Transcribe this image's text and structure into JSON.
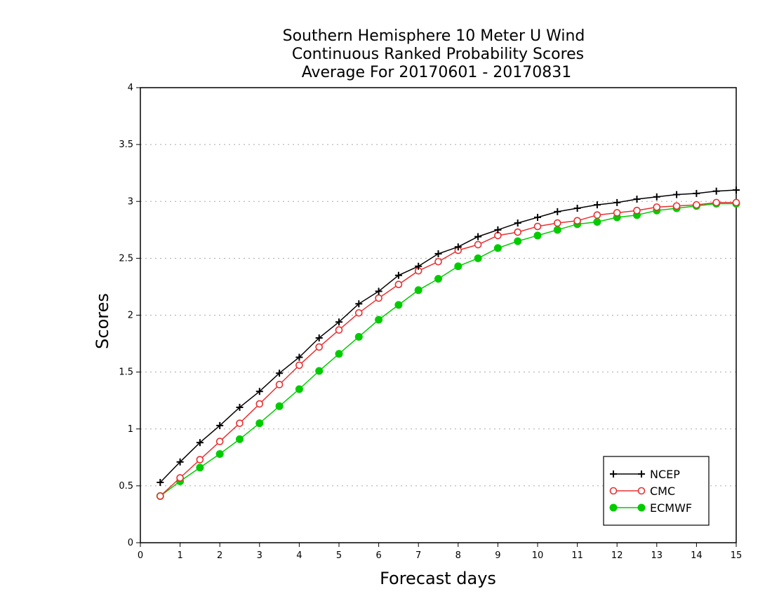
{
  "chart_data": {
    "type": "line",
    "title": [
      "Southern Hemisphere 10 Meter U Wind",
      "Continuous Ranked Probability Scores",
      "Average For 20170601 - 20170831"
    ],
    "xlabel": "Forecast days",
    "ylabel": "Scores",
    "xlim": [
      0,
      15
    ],
    "ylim": [
      0,
      4
    ],
    "x_ticks": [
      "0",
      "1",
      "2",
      "3",
      "4",
      "5",
      "6",
      "7",
      "8",
      "9",
      "10",
      "11",
      "12",
      "13",
      "14",
      "15"
    ],
    "y_ticks": [
      "0",
      "0.5",
      "1",
      "1.5",
      "2",
      "2.5",
      "3",
      "3.5",
      "4"
    ],
    "grid": true,
    "legend_position": "bottom-right",
    "x": [
      0.5,
      1,
      1.5,
      2,
      2.5,
      3,
      3.5,
      4,
      4.5,
      5,
      5.5,
      6,
      6.5,
      7,
      7.5,
      8,
      8.5,
      9,
      9.5,
      10,
      10.5,
      11,
      11.5,
      12,
      12.5,
      13,
      13.5,
      14,
      14.5,
      15
    ],
    "series": [
      {
        "name": "NCEP",
        "color": "#000000",
        "marker": "plus",
        "values": [
          0.53,
          0.71,
          0.88,
          1.03,
          1.19,
          1.33,
          1.49,
          1.63,
          1.8,
          1.94,
          2.1,
          2.21,
          2.35,
          2.43,
          2.54,
          2.6,
          2.69,
          2.75,
          2.81,
          2.86,
          2.91,
          2.94,
          2.97,
          2.99,
          3.02,
          3.04,
          3.06,
          3.07,
          3.09,
          3.1
        ]
      },
      {
        "name": "CMC",
        "color": "#e83030",
        "marker": "open-circle",
        "values": [
          0.41,
          0.57,
          0.73,
          0.89,
          1.05,
          1.22,
          1.39,
          1.56,
          1.72,
          1.87,
          2.02,
          2.15,
          2.27,
          2.39,
          2.47,
          2.57,
          2.62,
          2.7,
          2.73,
          2.78,
          2.81,
          2.83,
          2.88,
          2.9,
          2.92,
          2.95,
          2.96,
          2.97,
          2.99,
          2.99
        ]
      },
      {
        "name": "ECMWF",
        "color": "#00cc00",
        "marker": "filled-circle",
        "values": [
          0.41,
          0.54,
          0.66,
          0.78,
          0.91,
          1.05,
          1.2,
          1.35,
          1.51,
          1.66,
          1.81,
          1.96,
          2.09,
          2.22,
          2.32,
          2.43,
          2.5,
          2.59,
          2.65,
          2.7,
          2.75,
          2.8,
          2.82,
          2.86,
          2.88,
          2.92,
          2.94,
          2.96,
          2.98,
          2.98
        ]
      }
    ]
  }
}
